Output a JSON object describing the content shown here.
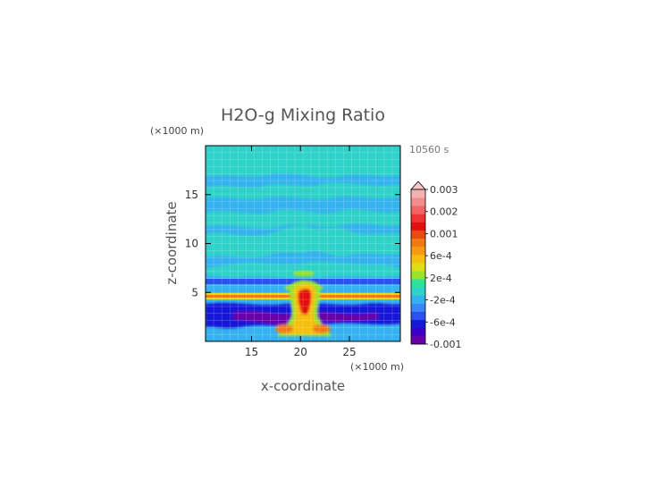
{
  "chart_data": {
    "type": "heatmap",
    "title": "H2O-g Mixing Ratio",
    "time_label": "10560 s",
    "xlabel": "x-coordinate",
    "ylabel": "z-coordinate",
    "x_units": "(×1000 m)",
    "y_units": "(×1000 m)",
    "xlim": [
      10.3,
      30.2
    ],
    "ylim": [
      0,
      20
    ],
    "x_ticks": [
      "15",
      "20",
      "25"
    ],
    "y_ticks": [
      "5",
      "10",
      "15"
    ],
    "grid": true,
    "colorbar": {
      "position": "right",
      "labels": [
        "0.003",
        "0.002",
        "0.001",
        "6e-4",
        "2e-4",
        "-2e-4",
        "-6e-4",
        "-0.001"
      ],
      "colors": [
        "#6a00a8",
        "#3a00c8",
        "#1818d8",
        "#2a52f0",
        "#3a86f6",
        "#34b2ef",
        "#2fd2c8",
        "#2ee29c",
        "#9be22c",
        "#dede10",
        "#f4bf10",
        "#f69a12",
        "#f07a12",
        "#e84a10",
        "#e41010",
        "#ee3434",
        "#f26464",
        "#f28c8c",
        "#f5b0b0"
      ],
      "extend_top_color": "#f6c8c8"
    },
    "field_features": [
      {
        "name": "background",
        "value": -0.0002
      },
      {
        "name": "upper-bands",
        "value": 0.0
      },
      {
        "name": "horizontal-line-z5",
        "value": 0.0012
      },
      {
        "name": "plume-core",
        "value": 0.002
      },
      {
        "name": "dark-band",
        "value": -0.0006
      }
    ]
  }
}
